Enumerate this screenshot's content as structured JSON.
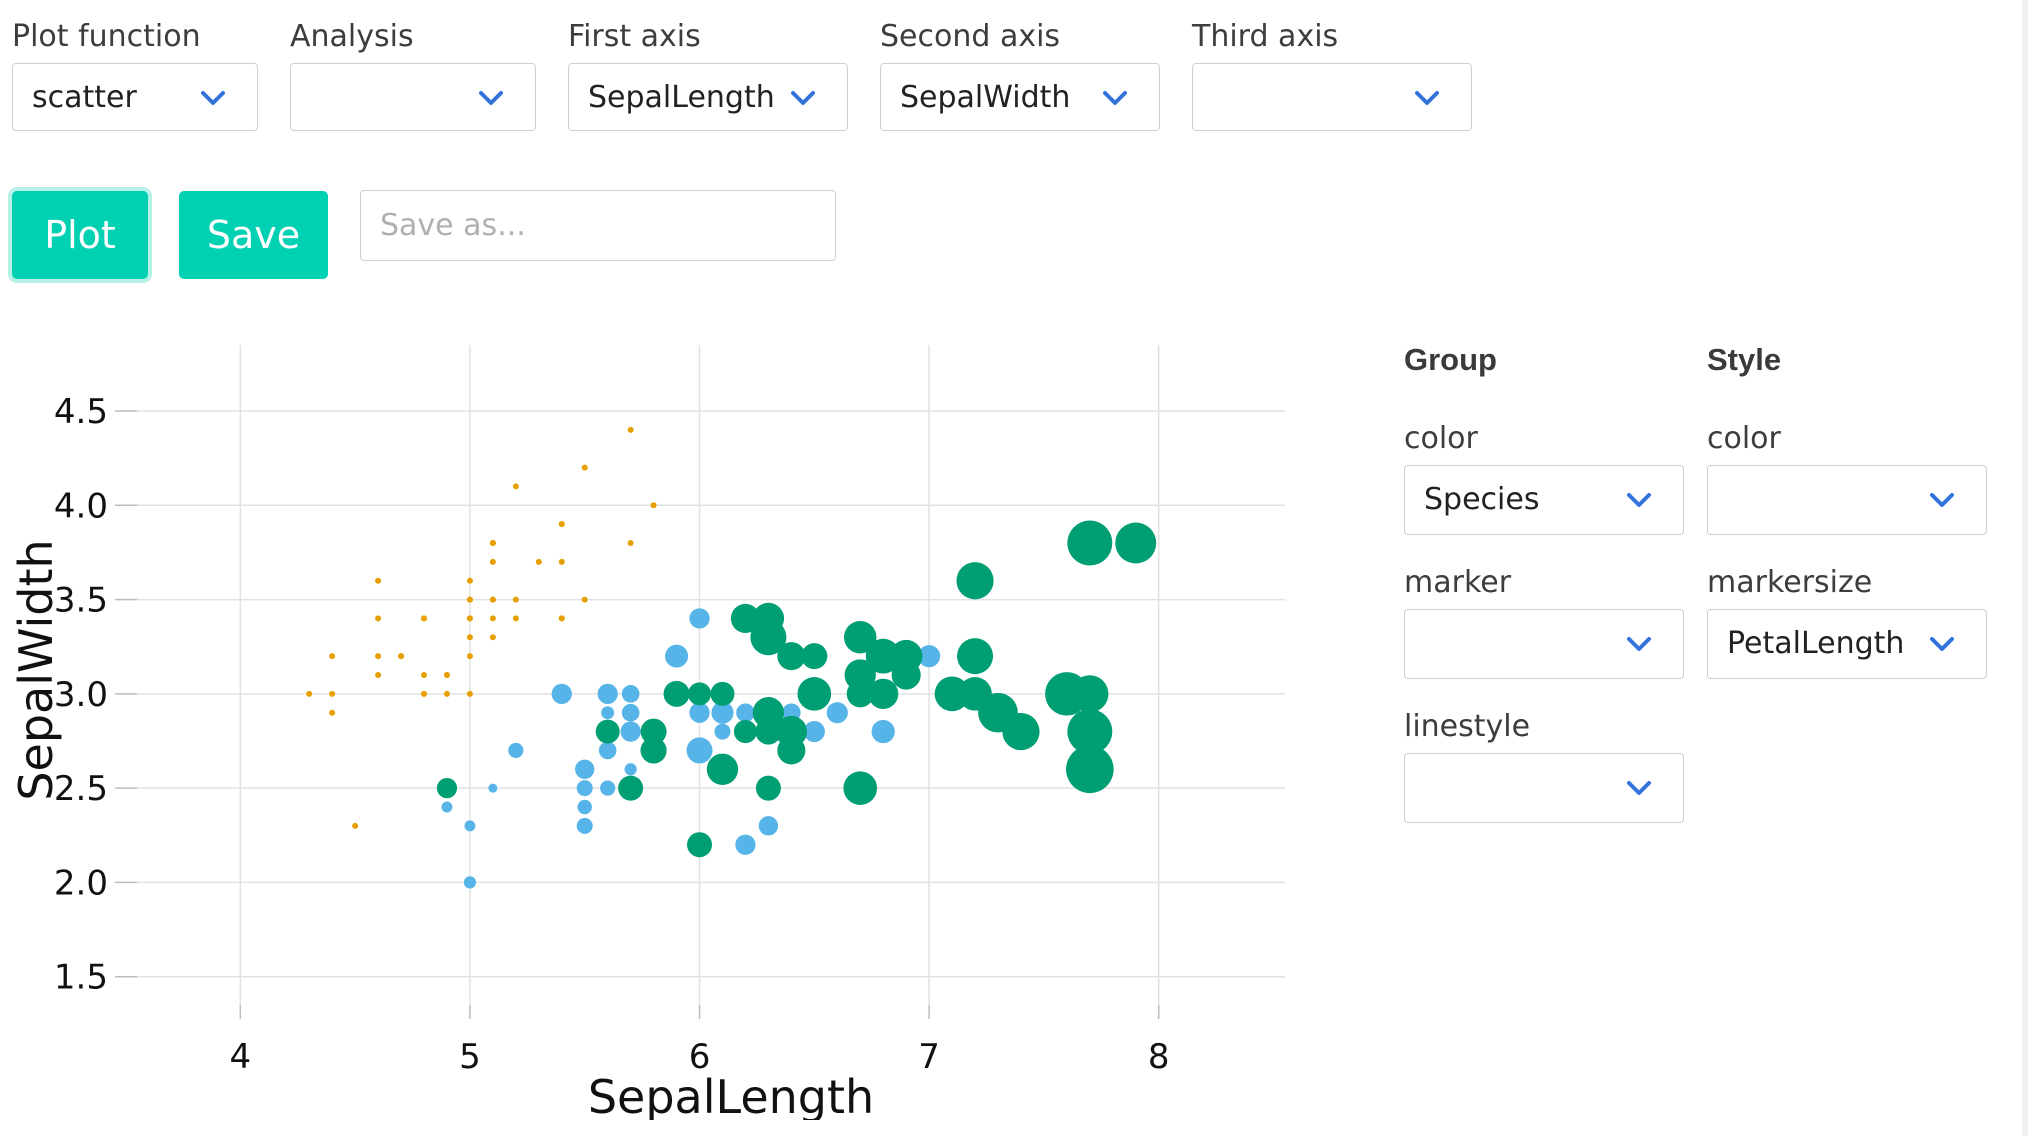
{
  "controls": {
    "plot_function": {
      "label": "Plot function",
      "value": "scatter"
    },
    "analysis": {
      "label": "Analysis",
      "value": ""
    },
    "first_axis": {
      "label": "First axis",
      "value": "SepalLength"
    },
    "second_axis": {
      "label": "Second axis",
      "value": "SepalWidth"
    },
    "third_axis": {
      "label": "Third axis",
      "value": ""
    }
  },
  "actions": {
    "plot_label": "Plot",
    "save_label": "Save",
    "save_as_placeholder": "Save as...",
    "save_as_value": ""
  },
  "side_panel": {
    "group": {
      "heading": "Group",
      "color": {
        "label": "color",
        "value": "Species"
      },
      "marker": {
        "label": "marker",
        "value": ""
      },
      "linestyle": {
        "label": "linestyle",
        "value": ""
      }
    },
    "style": {
      "heading": "Style",
      "color": {
        "label": "color",
        "value": ""
      },
      "markersize": {
        "label": "markersize",
        "value": "PetalLength"
      }
    }
  },
  "colors": {
    "accent": "#00d1b2",
    "chevron": "#3273dc",
    "setosa": "#e69f00",
    "versicolor": "#56b4e9",
    "virginica": "#009e73"
  },
  "icons": {
    "select_arrow": "chevron-down-icon"
  },
  "chart_data": {
    "type": "scatter",
    "xlabel": "SepalLength",
    "ylabel": "SepalWidth",
    "xlim": [
      3.55,
      8.55
    ],
    "ylim": [
      1.35,
      4.85
    ],
    "xticks": [
      "4",
      "5",
      "6",
      "7",
      "8"
    ],
    "yticks": [
      "1.5",
      "2.0",
      "2.5",
      "3.0",
      "3.5",
      "4.0",
      "4.5"
    ],
    "grid": true,
    "size_variable": "PetalLength",
    "series": [
      {
        "color": "#e69f00",
        "points": [
          [
            5.1,
            3.5,
            1.4
          ],
          [
            4.9,
            3.0,
            1.4
          ],
          [
            4.7,
            3.2,
            1.3
          ],
          [
            4.6,
            3.1,
            1.5
          ],
          [
            5.0,
            3.6,
            1.4
          ],
          [
            5.4,
            3.9,
            1.7
          ],
          [
            4.6,
            3.4,
            1.4
          ],
          [
            5.0,
            3.4,
            1.5
          ],
          [
            4.4,
            2.9,
            1.4
          ],
          [
            4.9,
            3.1,
            1.5
          ],
          [
            5.4,
            3.7,
            1.5
          ],
          [
            4.8,
            3.4,
            1.6
          ],
          [
            4.8,
            3.0,
            1.4
          ],
          [
            4.3,
            3.0,
            1.1
          ],
          [
            5.8,
            4.0,
            1.2
          ],
          [
            5.7,
            4.4,
            1.5
          ],
          [
            5.4,
            3.9,
            1.3
          ],
          [
            5.1,
            3.5,
            1.4
          ],
          [
            5.7,
            3.8,
            1.7
          ],
          [
            5.1,
            3.8,
            1.5
          ],
          [
            5.4,
            3.4,
            1.7
          ],
          [
            5.1,
            3.7,
            1.5
          ],
          [
            4.6,
            3.6,
            1.0
          ],
          [
            5.1,
            3.3,
            1.7
          ],
          [
            4.8,
            3.4,
            1.9
          ],
          [
            5.0,
            3.0,
            1.6
          ],
          [
            5.0,
            3.4,
            1.6
          ],
          [
            5.2,
            3.5,
            1.5
          ],
          [
            5.2,
            3.4,
            1.4
          ],
          [
            4.7,
            3.2,
            1.6
          ],
          [
            4.8,
            3.1,
            1.6
          ],
          [
            5.4,
            3.4,
            1.5
          ],
          [
            5.2,
            4.1,
            1.5
          ],
          [
            5.5,
            4.2,
            1.4
          ],
          [
            4.9,
            3.1,
            1.5
          ],
          [
            5.0,
            3.2,
            1.2
          ],
          [
            5.5,
            3.5,
            1.3
          ],
          [
            4.4,
            3.0,
            1.3
          ],
          [
            5.1,
            3.4,
            1.5
          ],
          [
            5.0,
            3.5,
            1.3
          ],
          [
            4.5,
            2.3,
            1.3
          ],
          [
            4.4,
            3.2,
            1.3
          ],
          [
            5.0,
            3.5,
            1.6
          ],
          [
            5.1,
            3.8,
            1.9
          ],
          [
            4.8,
            3.0,
            1.4
          ],
          [
            5.1,
            3.8,
            1.6
          ],
          [
            4.6,
            3.2,
            1.4
          ],
          [
            5.3,
            3.7,
            1.5
          ],
          [
            5.0,
            3.3,
            1.4
          ]
        ]
      },
      {
        "color": "#56b4e9",
        "points": [
          [
            7.0,
            3.2,
            4.7
          ],
          [
            6.4,
            3.2,
            4.5
          ],
          [
            6.9,
            3.1,
            4.9
          ],
          [
            5.5,
            2.3,
            4.0
          ],
          [
            6.5,
            2.8,
            4.6
          ],
          [
            5.7,
            2.8,
            4.5
          ],
          [
            6.3,
            3.3,
            4.7
          ],
          [
            4.9,
            2.4,
            3.3
          ],
          [
            6.6,
            2.9,
            4.6
          ],
          [
            5.2,
            2.7,
            3.9
          ],
          [
            5.0,
            2.0,
            3.5
          ],
          [
            5.9,
            3.0,
            4.2
          ],
          [
            6.0,
            2.2,
            4.0
          ],
          [
            6.1,
            2.9,
            4.7
          ],
          [
            5.6,
            2.9,
            3.6
          ],
          [
            6.7,
            3.1,
            4.4
          ],
          [
            5.6,
            3.0,
            4.5
          ],
          [
            5.8,
            2.7,
            4.1
          ],
          [
            6.2,
            2.2,
            4.5
          ],
          [
            5.6,
            2.5,
            3.9
          ],
          [
            5.9,
            3.2,
            4.8
          ],
          [
            6.1,
            2.8,
            4.0
          ],
          [
            6.3,
            2.5,
            4.9
          ],
          [
            6.4,
            2.9,
            4.3
          ],
          [
            6.8,
            2.8,
            4.8
          ],
          [
            6.0,
            2.9,
            4.5
          ],
          [
            5.7,
            2.6,
            3.5
          ],
          [
            5.5,
            2.4,
            3.8
          ],
          [
            5.8,
            2.7,
            3.9
          ],
          [
            5.4,
            3.0,
            4.5
          ],
          [
            6.0,
            3.4,
            4.5
          ],
          [
            6.3,
            2.3,
            4.4
          ],
          [
            5.5,
            2.5,
            4.0
          ],
          [
            5.5,
            2.6,
            4.4
          ],
          [
            5.0,
            2.3,
            3.3
          ],
          [
            5.7,
            3.0,
            4.2
          ],
          [
            5.7,
            2.9,
            4.2
          ],
          [
            6.2,
            2.9,
            4.3
          ],
          [
            5.1,
            2.5,
            3.0
          ],
          [
            5.7,
            2.8,
            4.1
          ],
          [
            6.8,
            2.8,
            4.8
          ],
          [
            5.6,
            2.7,
            4.2
          ],
          [
            6.0,
            2.7,
            5.1
          ]
        ]
      },
      {
        "color": "#009e73",
        "points": [
          [
            6.3,
            3.3,
            6.0
          ],
          [
            5.8,
            2.7,
            5.1
          ],
          [
            7.1,
            3.0,
            5.9
          ],
          [
            6.3,
            2.9,
            5.6
          ],
          [
            6.5,
            3.0,
            5.8
          ],
          [
            7.6,
            3.0,
            6.6
          ],
          [
            4.9,
            2.5,
            4.5
          ],
          [
            7.3,
            2.9,
            6.3
          ],
          [
            6.7,
            2.5,
            5.8
          ],
          [
            7.2,
            3.6,
            6.1
          ],
          [
            6.5,
            3.2,
            5.1
          ],
          [
            6.4,
            2.7,
            5.3
          ],
          [
            6.8,
            3.0,
            5.5
          ],
          [
            5.7,
            2.5,
            5.0
          ],
          [
            5.8,
            2.8,
            5.1
          ],
          [
            6.4,
            3.2,
            5.3
          ],
          [
            7.7,
            3.8,
            6.7
          ],
          [
            7.7,
            2.6,
            6.9
          ],
          [
            6.0,
            2.2,
            5.0
          ],
          [
            6.9,
            3.2,
            5.7
          ],
          [
            5.6,
            2.8,
            4.9
          ],
          [
            7.7,
            2.8,
            6.7
          ],
          [
            6.7,
            3.3,
            5.7
          ],
          [
            7.2,
            3.2,
            6.0
          ],
          [
            6.2,
            2.8,
            4.8
          ],
          [
            6.1,
            3.0,
            4.9
          ],
          [
            6.4,
            2.8,
            5.6
          ],
          [
            7.2,
            3.0,
            5.8
          ],
          [
            7.4,
            2.8,
            6.1
          ],
          [
            7.9,
            3.8,
            6.4
          ],
          [
            6.3,
            2.8,
            5.1
          ],
          [
            6.1,
            2.6,
            5.6
          ],
          [
            7.7,
            3.0,
            6.1
          ],
          [
            6.3,
            3.4,
            5.6
          ],
          [
            6.0,
            3.0,
            4.8
          ],
          [
            6.9,
            3.1,
            5.4
          ],
          [
            6.7,
            3.1,
            5.6
          ],
          [
            5.8,
            2.7,
            5.1
          ],
          [
            6.8,
            3.2,
            5.9
          ],
          [
            6.7,
            3.0,
            5.2
          ],
          [
            6.3,
            2.5,
            5.0
          ],
          [
            6.2,
            3.4,
            5.4
          ],
          [
            5.9,
            3.0,
            5.1
          ]
        ]
      }
    ]
  }
}
